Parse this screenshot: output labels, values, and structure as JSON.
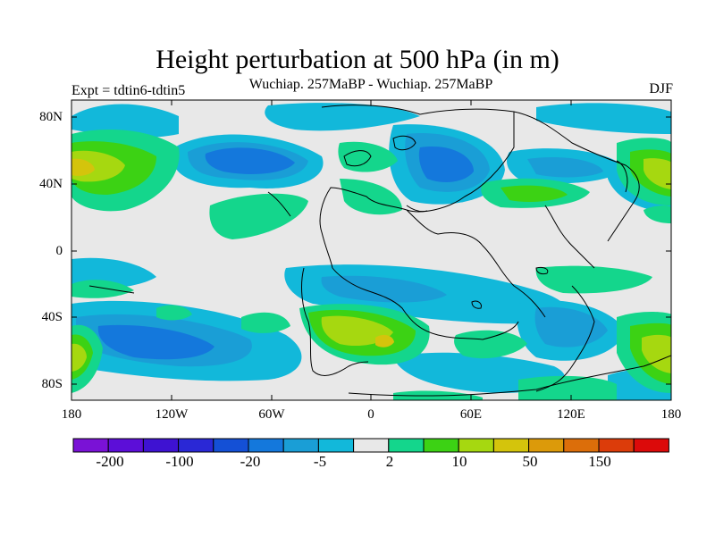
{
  "title": "Height perturbation at 500 hPa (in m)",
  "left_label": "Expt = tdtin6-tdtin5",
  "center_label": "Wuchiap. 257MaBP - Wuchiap. 257MaBP",
  "right_label": "DJF",
  "y_axis_labels": [
    "80N",
    "40N",
    "0",
    "40S",
    "80S"
  ],
  "x_axis_labels": [
    "180",
    "120W",
    "60W",
    "0",
    "60E",
    "120E",
    "180"
  ],
  "colorbar": {
    "colors": [
      "#7a12d6",
      "#5c0ed8",
      "#3e12d2",
      "#2a28d6",
      "#1450d6",
      "#1478dc",
      "#1a9ed6",
      "#12b8da",
      "#e8e8e8",
      "#14d68c",
      "#3cd214",
      "#a6d810",
      "#d4c40c",
      "#dc9a0a",
      "#dc6e0a",
      "#dc3c0a",
      "#dc0a0a"
    ],
    "tick_labels": [
      "-200",
      "-100",
      "-20",
      "-5",
      "2",
      "10",
      "50",
      "150"
    ]
  },
  "map_colors": {
    "background": "#e8e8e8",
    "weak_negative": "#12b8da",
    "medium_negative": "#1a9ed6",
    "strong_negative": "#1478dc",
    "weak_positive": "#14d68c",
    "medium_positive": "#3cd214",
    "strong_positive": "#a6d810",
    "peak_positive": "#d4c40c"
  }
}
